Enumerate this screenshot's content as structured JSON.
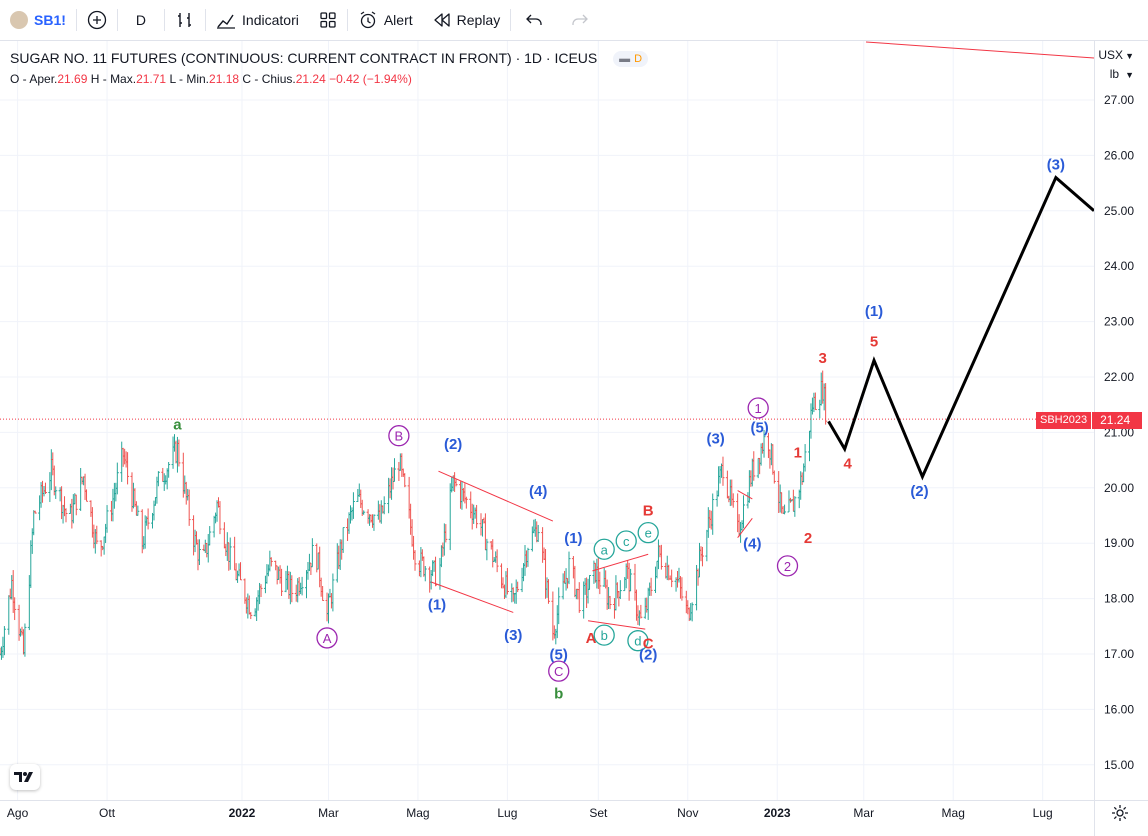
{
  "toolbar": {
    "symbol": "SB1!",
    "interval": "D",
    "indicators_label": "Indicatori",
    "alert_label": "Alert",
    "replay_label": "Replay"
  },
  "legend": {
    "title": "SUGAR NO. 11 FUTURES (CONTINUOUS: CURRENT CONTRACT IN FRONT) · 1D · ICEUS",
    "badge_letter": "D",
    "o_label": "O - Aper.",
    "o": "21.69",
    "h_label": "H - Max.",
    "h": "21.71",
    "l_label": "L - Min.",
    "l": "21.18",
    "c_label": "C - Chius.",
    "c": "21.24",
    "change": "−0.42 (−1.94%)"
  },
  "axis": {
    "currency": "USX",
    "unit": "lb",
    "price_tag_symbol": "SBH2023",
    "price_tag_value": "21.24"
  },
  "colors": {
    "up": "#26a69a",
    "down": "#ef5350",
    "blue": "#2a5bd7",
    "purple": "#9c27b0",
    "green": "#388e3c",
    "red": "#e53935",
    "teal": "#26a69a",
    "forecast": "#000000"
  },
  "chart_data": {
    "type": "line",
    "title": "SUGAR NO. 11 FUTURES (CONTINUOUS: CURRENT CONTRACT IN FRONT) · 1D · ICEUS",
    "y_ticks": [
      "27.00",
      "26.00",
      "25.00",
      "24.00",
      "23.00",
      "22.00",
      "21.00",
      "20.00",
      "19.00",
      "18.00",
      "17.00",
      "16.00",
      "15.00"
    ],
    "x_ticks": [
      "Ago",
      "Ott",
      "2022",
      "Mar",
      "Mag",
      "Lug",
      "Set",
      "Nov",
      "2023",
      "Mar",
      "Mag",
      "Lug"
    ],
    "ylim": [
      14.6,
      27.6
    ],
    "grid": true,
    "last_price": 21.24,
    "price_path": [
      {
        "date": "2021-07-20",
        "price": 17.0
      },
      {
        "date": "2021-07-28",
        "price": 18.3
      },
      {
        "date": "2021-08-05",
        "price": 17.0
      },
      {
        "date": "2021-08-12",
        "price": 19.5
      },
      {
        "date": "2021-08-24",
        "price": 20.3
      },
      {
        "date": "2021-09-05",
        "price": 19.4
      },
      {
        "date": "2021-09-15",
        "price": 20.2
      },
      {
        "date": "2021-09-25",
        "price": 18.8
      },
      {
        "date": "2021-10-05",
        "price": 19.8
      },
      {
        "date": "2021-10-12",
        "price": 20.6
      },
      {
        "date": "2021-10-25",
        "price": 19.0
      },
      {
        "date": "2021-11-05",
        "price": 20.1
      },
      {
        "date": "2021-11-18",
        "price": 20.7
      },
      {
        "date": "2021-11-28",
        "price": 19.2
      },
      {
        "date": "2021-12-05",
        "price": 18.6
      },
      {
        "date": "2021-12-15",
        "price": 19.7
      },
      {
        "date": "2021-12-25",
        "price": 18.6
      },
      {
        "date": "2022-01-08",
        "price": 17.8
      },
      {
        "date": "2022-01-20",
        "price": 18.6
      },
      {
        "date": "2022-02-05",
        "price": 18.1
      },
      {
        "date": "2022-02-20",
        "price": 18.9
      },
      {
        "date": "2022-02-28",
        "price": 17.7
      },
      {
        "date": "2022-03-10",
        "price": 19.0
      },
      {
        "date": "2022-03-20",
        "price": 19.8
      },
      {
        "date": "2022-04-05",
        "price": 19.4
      },
      {
        "date": "2022-04-18",
        "price": 20.5
      },
      {
        "date": "2022-04-30",
        "price": 18.7
      },
      {
        "date": "2022-05-15",
        "price": 18.4
      },
      {
        "date": "2022-05-25",
        "price": 20.1
      },
      {
        "date": "2022-06-10",
        "price": 19.5
      },
      {
        "date": "2022-06-25",
        "price": 18.5
      },
      {
        "date": "2022-07-05",
        "price": 17.9
      },
      {
        "date": "2022-07-15",
        "price": 19.0
      },
      {
        "date": "2022-07-22",
        "price": 19.3
      },
      {
        "date": "2022-08-01",
        "price": 17.4
      },
      {
        "date": "2022-08-12",
        "price": 18.6
      },
      {
        "date": "2022-08-20",
        "price": 17.9
      },
      {
        "date": "2022-08-30",
        "price": 18.5
      },
      {
        "date": "2022-09-10",
        "price": 17.9
      },
      {
        "date": "2022-09-20",
        "price": 18.5
      },
      {
        "date": "2022-10-01",
        "price": 17.5
      },
      {
        "date": "2022-10-12",
        "price": 18.8
      },
      {
        "date": "2022-10-25",
        "price": 18.3
      },
      {
        "date": "2022-11-01",
        "price": 17.7
      },
      {
        "date": "2022-11-10",
        "price": 18.8
      },
      {
        "date": "2022-11-25",
        "price": 20.4
      },
      {
        "date": "2022-12-05",
        "price": 19.2
      },
      {
        "date": "2022-12-15",
        "price": 20.3
      },
      {
        "date": "2022-12-25",
        "price": 21.0
      },
      {
        "date": "2023-01-05",
        "price": 19.4
      },
      {
        "date": "2023-01-12",
        "price": 19.7
      },
      {
        "date": "2023-01-18",
        "price": 20.2
      },
      {
        "date": "2023-01-25",
        "price": 21.5
      },
      {
        "date": "2023-02-01",
        "price": 21.8
      },
      {
        "date": "2023-02-04",
        "price": 21.24
      }
    ],
    "forecast": [
      {
        "date": "2023-02-05",
        "price": 21.2
      },
      {
        "date": "2023-02-16",
        "price": 20.7
      },
      {
        "date": "2023-03-08",
        "price": 22.3
      },
      {
        "date": "2023-04-10",
        "price": 20.2
      },
      {
        "date": "2023-07-10",
        "price": 25.6
      },
      {
        "date": "2023-08-05",
        "price": 25.0
      }
    ],
    "annotations": [
      {
        "label": "a",
        "color": "green",
        "circled": false,
        "date": "2021-11-18",
        "price": 21.05
      },
      {
        "label": "A",
        "color": "purple",
        "circled": true,
        "date": "2022-02-28",
        "price": 17.2
      },
      {
        "label": "B",
        "color": "purple",
        "circled": true,
        "date": "2022-04-18",
        "price": 20.85
      },
      {
        "label": "(1)",
        "color": "blue",
        "circled": false,
        "date": "2022-05-14",
        "price": 17.8
      },
      {
        "label": "(2)",
        "color": "blue",
        "circled": false,
        "date": "2022-05-25",
        "price": 20.7
      },
      {
        "label": "(3)",
        "color": "blue",
        "circled": false,
        "date": "2022-07-05",
        "price": 17.25
      },
      {
        "label": "(4)",
        "color": "blue",
        "circled": false,
        "date": "2022-07-22",
        "price": 19.85
      },
      {
        "label": "(5)",
        "color": "blue",
        "circled": false,
        "date": "2022-08-05",
        "price": 16.9
      },
      {
        "label": "C",
        "color": "purple",
        "circled": true,
        "date": "2022-08-05",
        "price": 16.6
      },
      {
        "label": "b",
        "color": "green",
        "circled": false,
        "date": "2022-08-05",
        "price": 16.2
      },
      {
        "label": "(1)",
        "color": "blue",
        "circled": false,
        "date": "2022-08-15",
        "price": 19.0
      },
      {
        "label": "A",
        "color": "red",
        "circled": false,
        "date": "2022-08-27",
        "price": 17.2
      },
      {
        "label": "a",
        "color": "teal",
        "circled": true,
        "date": "2022-09-05",
        "price": 18.8
      },
      {
        "label": "b",
        "color": "teal",
        "circled": true,
        "date": "2022-09-05",
        "price": 17.25
      },
      {
        "label": "c",
        "color": "teal",
        "circled": true,
        "date": "2022-09-20",
        "price": 18.95
      },
      {
        "label": "d",
        "color": "teal",
        "circled": true,
        "date": "2022-09-28",
        "price": 17.15
      },
      {
        "label": "e",
        "color": "teal",
        "circled": true,
        "date": "2022-10-05",
        "price": 19.1
      },
      {
        "label": "B",
        "color": "red",
        "circled": false,
        "date": "2022-10-05",
        "price": 19.5
      },
      {
        "label": "C",
        "color": "red",
        "circled": false,
        "date": "2022-10-05",
        "price": 17.1
      },
      {
        "label": "(2)",
        "color": "blue",
        "circled": false,
        "date": "2022-10-05",
        "price": 16.9
      },
      {
        "label": "(3)",
        "color": "blue",
        "circled": false,
        "date": "2022-11-20",
        "price": 20.8
      },
      {
        "label": "(4)",
        "color": "blue",
        "circled": false,
        "date": "2022-12-15",
        "price": 18.9
      },
      {
        "label": "(5)",
        "color": "blue",
        "circled": false,
        "date": "2022-12-20",
        "price": 21.0
      },
      {
        "label": "1",
        "color": "purple",
        "circled": true,
        "date": "2022-12-19",
        "price": 21.35
      },
      {
        "label": "2",
        "color": "purple",
        "circled": true,
        "date": "2023-01-08",
        "price": 18.5
      },
      {
        "label": "1",
        "color": "red",
        "circled": false,
        "date": "2023-01-15",
        "price": 20.55
      },
      {
        "label": "2",
        "color": "red",
        "circled": false,
        "date": "2023-01-22",
        "price": 19.0
      },
      {
        "label": "3",
        "color": "red",
        "circled": false,
        "date": "2023-02-01",
        "price": 22.25
      },
      {
        "label": "4",
        "color": "red",
        "circled": false,
        "date": "2023-02-18",
        "price": 20.35
      },
      {
        "label": "5",
        "color": "red",
        "circled": false,
        "date": "2023-03-08",
        "price": 22.55
      },
      {
        "label": "(1)",
        "color": "blue",
        "circled": false,
        "date": "2023-03-08",
        "price": 23.1
      },
      {
        "label": "(2)",
        "color": "blue",
        "circled": false,
        "date": "2023-04-08",
        "price": 19.85
      },
      {
        "label": "(3)",
        "color": "blue",
        "circled": false,
        "date": "2023-07-10",
        "price": 25.75
      }
    ],
    "trendlines": [
      {
        "from": {
          "date": "2022-05-15",
          "price": 20.3
        },
        "to": {
          "date": "2022-08-01",
          "price": 19.4
        },
        "color": "red"
      },
      {
        "from": {
          "date": "2022-05-10",
          "price": 18.3
        },
        "to": {
          "date": "2022-07-05",
          "price": 17.75
        },
        "color": "red"
      },
      {
        "from": {
          "date": "2022-08-28",
          "price": 18.5
        },
        "to": {
          "date": "2022-10-05",
          "price": 18.8
        },
        "color": "red"
      },
      {
        "from": {
          "date": "2022-08-25",
          "price": 17.6
        },
        "to": {
          "date": "2022-10-03",
          "price": 17.45
        },
        "color": "red"
      },
      {
        "from": {
          "date": "2022-12-05",
          "price": 19.95
        },
        "to": {
          "date": "2022-12-15",
          "price": 19.8
        },
        "color": "red"
      },
      {
        "from": {
          "date": "2022-12-05",
          "price": 19.1
        },
        "to": {
          "date": "2022-12-15",
          "price": 19.45
        },
        "color": "red"
      }
    ]
  }
}
